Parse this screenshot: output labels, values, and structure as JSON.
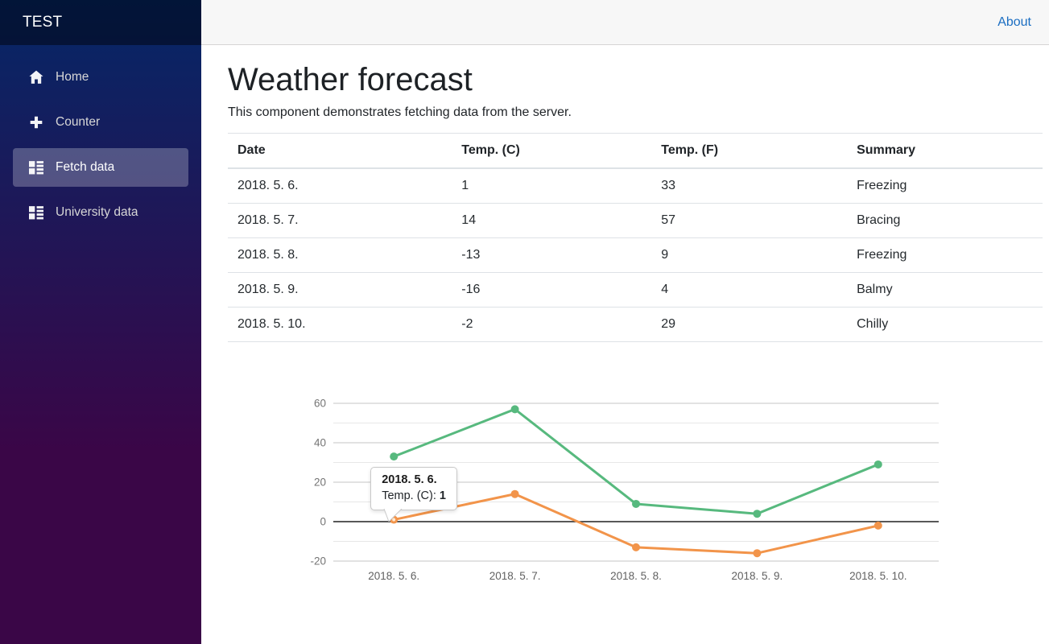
{
  "sidebar": {
    "brand": "TEST",
    "items": [
      {
        "label": "Home",
        "icon": "home-icon",
        "active": false
      },
      {
        "label": "Counter",
        "icon": "plus-icon",
        "active": false
      },
      {
        "label": "Fetch data",
        "icon": "list-rich-icon",
        "active": true
      },
      {
        "label": "University data",
        "icon": "list-rich-icon",
        "active": false
      }
    ]
  },
  "topbar": {
    "about_label": "About"
  },
  "page": {
    "title": "Weather forecast",
    "description": "This component demonstrates fetching data from the server."
  },
  "table": {
    "headers": [
      "Date",
      "Temp. (C)",
      "Temp. (F)",
      "Summary"
    ],
    "rows": [
      [
        "2018. 5. 6.",
        "1",
        "33",
        "Freezing"
      ],
      [
        "2018. 5. 7.",
        "14",
        "57",
        "Bracing"
      ],
      [
        "2018. 5. 8.",
        "-13",
        "9",
        "Freezing"
      ],
      [
        "2018. 5. 9.",
        "-16",
        "4",
        "Balmy"
      ],
      [
        "2018. 5. 10.",
        "-2",
        "29",
        "Chilly"
      ]
    ]
  },
  "chart_data": {
    "type": "line",
    "categories": [
      "2018. 5. 6.",
      "2018. 5. 7.",
      "2018. 5. 8.",
      "2018. 5. 9.",
      "2018. 5. 10."
    ],
    "series": [
      {
        "name": "Temp. (F)",
        "color": "#57b97e",
        "values": [
          33,
          57,
          9,
          4,
          29
        ]
      },
      {
        "name": "Temp. (C)",
        "color": "#f2944a",
        "values": [
          1,
          14,
          -13,
          -16,
          -2
        ]
      }
    ],
    "ylim": [
      -20,
      60
    ],
    "ytick_labels": [
      60,
      40,
      20,
      0,
      -20
    ],
    "grid_step": 10,
    "grid": true,
    "legend": "none",
    "zero_line": true,
    "tooltip": {
      "title": "2018. 5. 6.",
      "label": "Temp. (C): ",
      "value": "1",
      "series_index": 1,
      "point_index": 0
    }
  },
  "colors": {
    "sidebar_gradient_top": "#052767",
    "sidebar_gradient_bottom": "#3a0647",
    "active_nav_bg": "rgba(255,255,255,0.25)",
    "topbar_bg": "#f7f7f7",
    "link_blue": "#1b6ec2",
    "grid_major": "#c6c6c6",
    "grid_minor": "#e7e7e7",
    "zero_line": "#212121",
    "axis_label": "#757575"
  }
}
